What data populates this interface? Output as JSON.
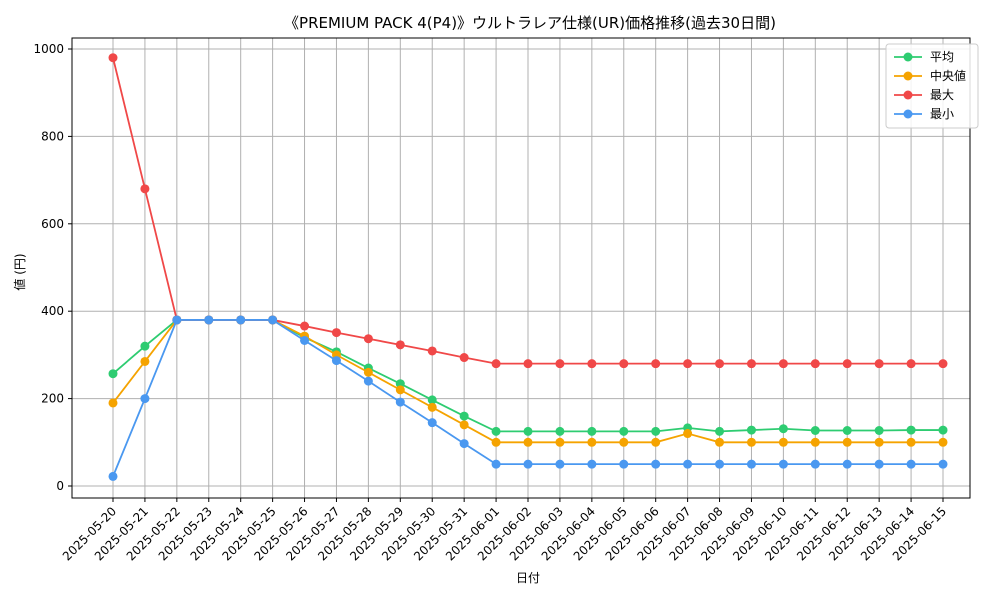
{
  "chart_data": {
    "type": "line",
    "title": "《PREMIUM PACK 4(P4)》ウルトラレア仕様(UR)価格推移(過去30日間)",
    "xlabel": "日付",
    "ylabel": "値 (円)",
    "ylim": [
      0,
      1000
    ],
    "yticks": [
      0,
      200,
      400,
      600,
      800,
      1000
    ],
    "grid": true,
    "legend_position": "top-right",
    "x": [
      "2025-05-20",
      "2025-05-21",
      "2025-05-22",
      "2025-05-23",
      "2025-05-24",
      "2025-05-25",
      "2025-05-26",
      "2025-05-27",
      "2025-05-28",
      "2025-05-29",
      "2025-05-30",
      "2025-05-31",
      "2025-06-01",
      "2025-06-02",
      "2025-06-03",
      "2025-06-04",
      "2025-06-05",
      "2025-06-06",
      "2025-06-07",
      "2025-06-08",
      "2025-06-09",
      "2025-06-10",
      "2025-06-11",
      "2025-06-12",
      "2025-06-13",
      "2025-06-14",
      "2025-06-15"
    ],
    "series": [
      {
        "name": "平均",
        "color": "#2ecc71",
        "values": [
          257,
          320,
          380,
          380,
          380,
          380,
          340,
          307,
          270,
          234,
          197,
          160,
          125,
          125,
          125,
          125,
          125,
          125,
          133,
          125,
          128,
          131,
          127,
          127,
          127,
          128,
          128
        ]
      },
      {
        "name": "中央値",
        "color": "#f5a300",
        "values": [
          190,
          285,
          380,
          380,
          380,
          380,
          343,
          300,
          260,
          220,
          180,
          140,
          100,
          100,
          100,
          100,
          100,
          100,
          120,
          100,
          100,
          100,
          100,
          100,
          100,
          100,
          100
        ]
      },
      {
        "name": "最大",
        "color": "#f04848",
        "values": [
          980,
          680,
          380,
          380,
          380,
          380,
          366,
          351,
          337,
          323,
          309,
          294,
          280,
          280,
          280,
          280,
          280,
          280,
          280,
          280,
          280,
          280,
          280,
          280,
          280,
          280,
          280
        ]
      },
      {
        "name": "最小",
        "color": "#4a98f0",
        "values": [
          22,
          200,
          380,
          380,
          380,
          380,
          333,
          287,
          240,
          192,
          145,
          97,
          50,
          50,
          50,
          50,
          50,
          50,
          50,
          50,
          50,
          50,
          50,
          50,
          50,
          50,
          50
        ]
      }
    ]
  }
}
